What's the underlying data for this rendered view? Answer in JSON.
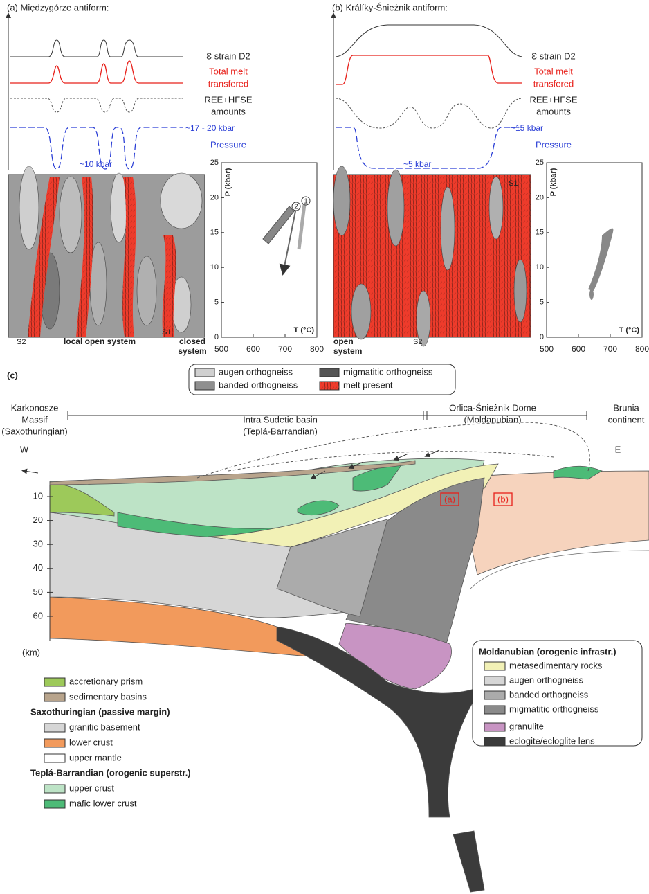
{
  "panel_a": {
    "title": "(a) Międzygórze antiform:",
    "profiles": {
      "strain": "Ɛ strain D2",
      "melt": [
        "Total melt",
        "transfered"
      ],
      "ree": [
        "REE+HFSE",
        "amounts"
      ],
      "pressure": "Pressure"
    },
    "pressure_high": "~17 - 20 kbar",
    "pressure_low": "~10 kbar",
    "block_labels": {
      "s2": "S2",
      "system": "local open system",
      "s1": "S1",
      "closed": [
        "closed",
        "system"
      ]
    },
    "pt_plot": {
      "y_label": "P (kbar)",
      "x_label": "T (°C)",
      "yticks": [
        0,
        5,
        10,
        15,
        20,
        25
      ],
      "xticks": [
        500,
        600,
        700,
        800
      ],
      "path_labels": [
        "1",
        "2"
      ]
    }
  },
  "panel_b": {
    "title": "(b) Králíky-Śnieżnik antiform:",
    "profiles": {
      "strain": "Ɛ strain D2",
      "melt": [
        "Total melt",
        "transfered"
      ],
      "ree": [
        "REE+HFSE",
        "amounts"
      ],
      "pressure": "Pressure"
    },
    "pressure_high": "~15 kbar",
    "pressure_low": "~5 kbar",
    "block_labels": {
      "s1": "S1",
      "open": [
        "open",
        "system"
      ],
      "s2": "S2"
    },
    "pt_plot": {
      "y_label": "P (kbar)",
      "x_label": "T (°C)",
      "yticks": [
        0,
        5,
        10,
        15,
        20,
        25
      ],
      "xticks": [
        500,
        600,
        700,
        800
      ]
    }
  },
  "legend_top": [
    "augen orthogneiss",
    "banded orthogneiss",
    "migmatitic orthogneiss",
    "melt present"
  ],
  "panel_c": {
    "label": "(c)",
    "regions": [
      [
        "Karkonosze",
        "Massif",
        "(Saxothuringian)"
      ],
      [
        "Intra Sudetic basin",
        "(Teplá-Barrandian)"
      ],
      [
        "Orlica-Śnieżnik Dome",
        "(Moldanubian)"
      ],
      [
        "Brunia",
        "continent"
      ]
    ],
    "west": "W",
    "east": "E",
    "depth_ticks": [
      10,
      20,
      30,
      40,
      50,
      60
    ],
    "depth_unit": "(km)",
    "box_labels": [
      "(a)",
      "(b)"
    ]
  },
  "legend_left": {
    "items_top": [
      "accretionary prism",
      "sedimentary basins"
    ],
    "groups": [
      {
        "title": "Saxothuringian (passive margin)",
        "items": [
          "granitic basement",
          "lower crust",
          "upper mantle"
        ]
      },
      {
        "title": "Teplá-Barrandian (orogenic superstr.)",
        "items": [
          "upper crust",
          "mafic lower crust"
        ]
      }
    ]
  },
  "legend_right": {
    "title": "Moldanubian (orogenic infrastr.)",
    "items": [
      "metasedimentary rocks",
      "augen orthogneiss",
      "banded orthogneiss",
      "migmatitic orthogneiss",
      "granulite",
      "eclogite/ecloglite lens"
    ]
  }
}
